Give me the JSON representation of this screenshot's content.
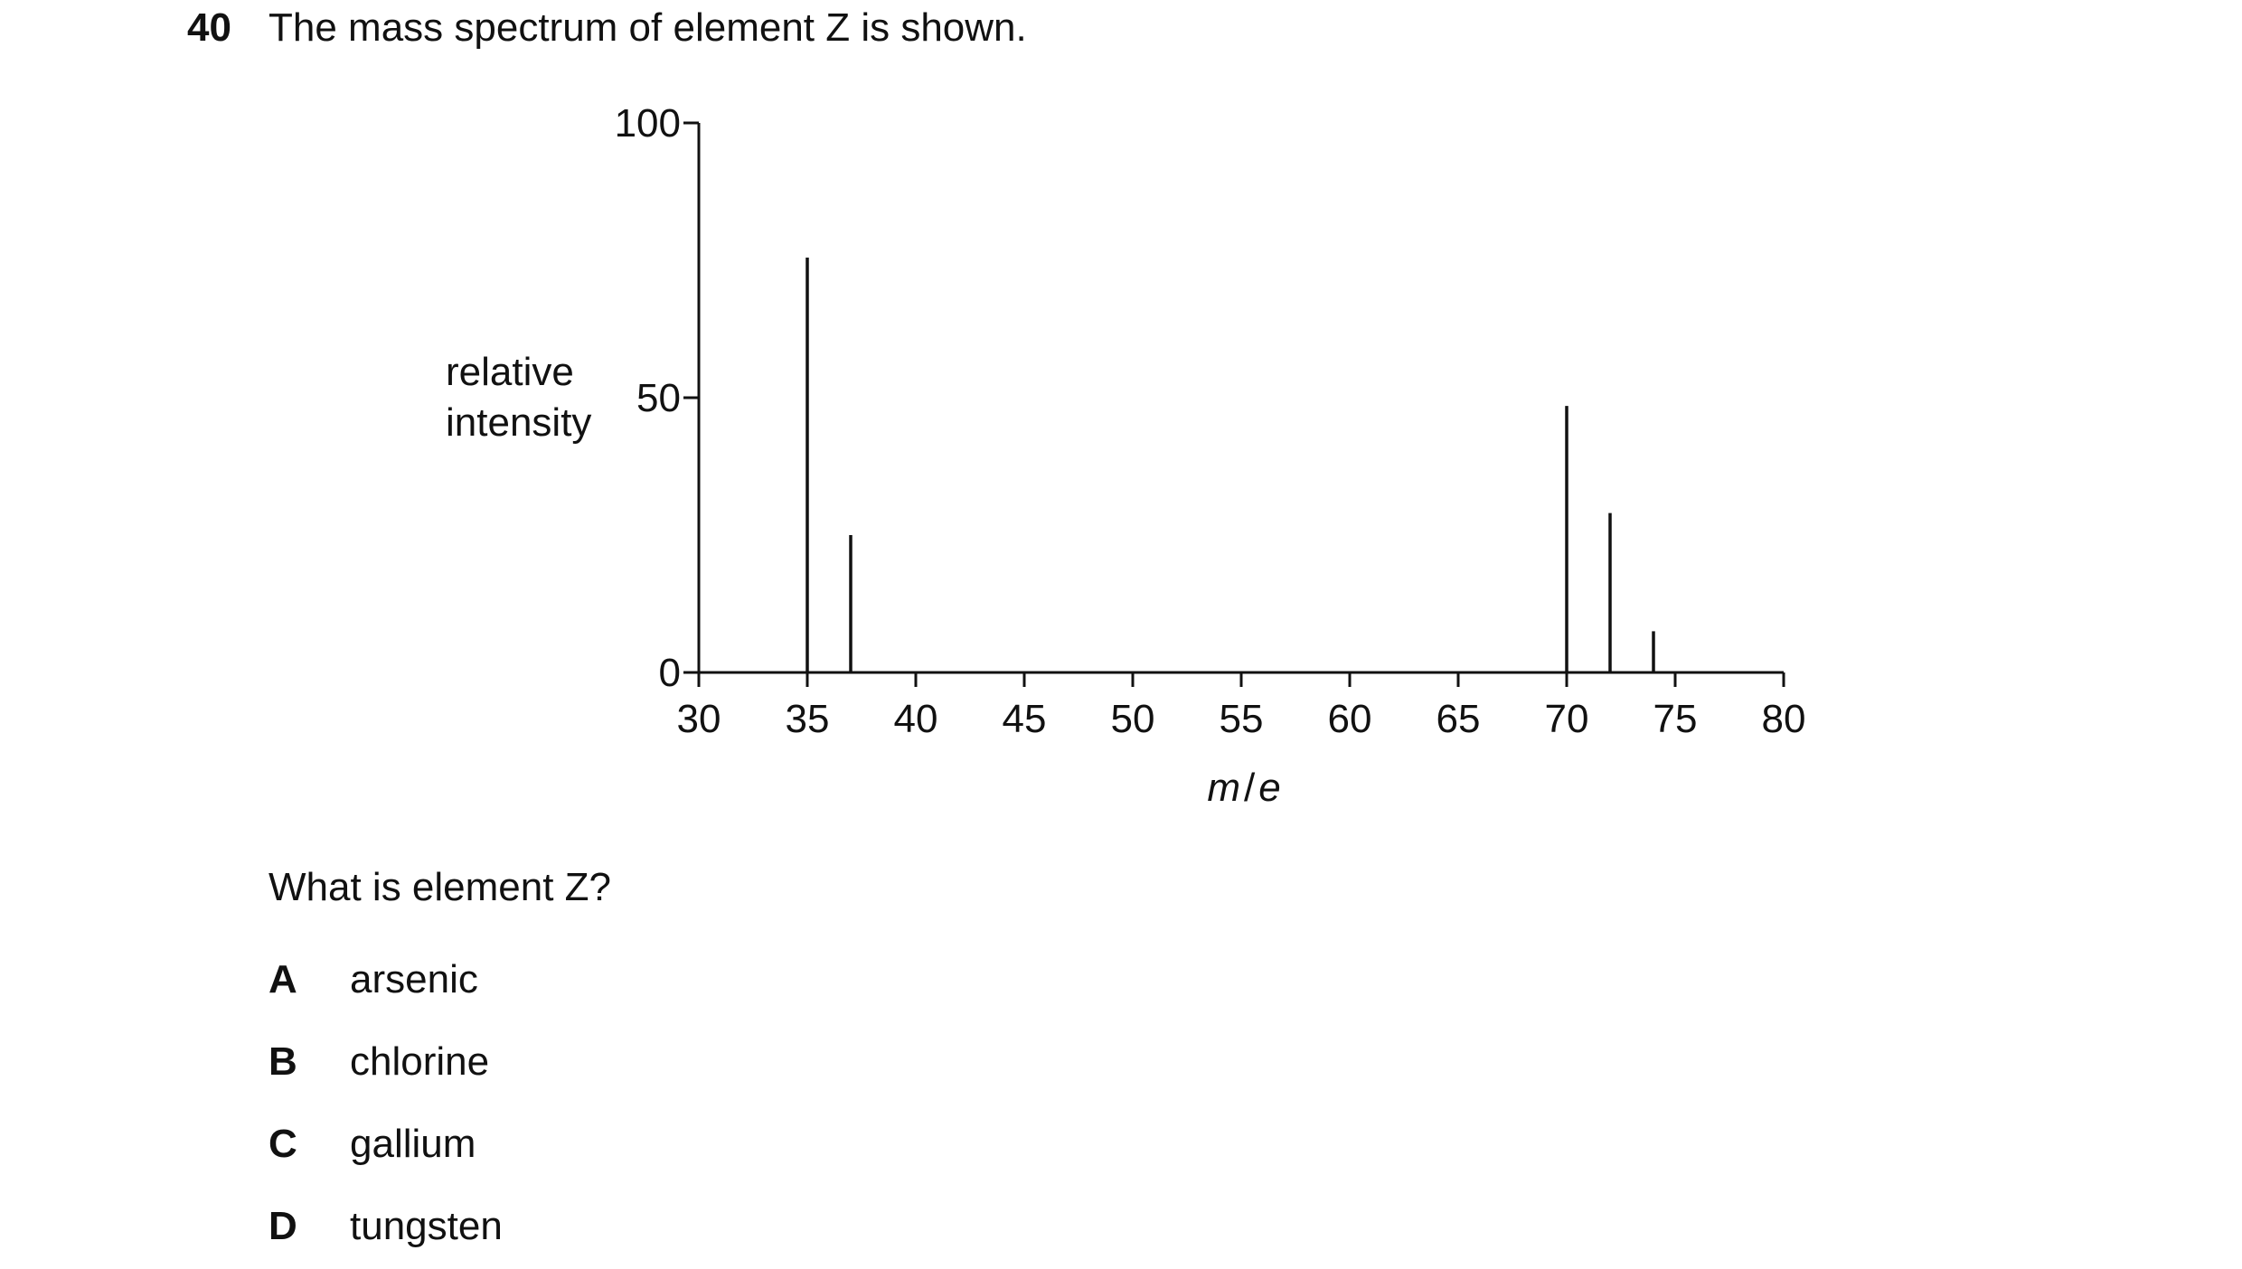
{
  "question": {
    "number": "40",
    "text": "The mass spectrum of element Z is shown.",
    "prompt": "What is element Z?",
    "options": [
      {
        "letter": "A",
        "text": "arsenic"
      },
      {
        "letter": "B",
        "text": "chlorine"
      },
      {
        "letter": "C",
        "text": "gallium"
      },
      {
        "letter": "D",
        "text": "tungsten"
      }
    ]
  },
  "chart_data": {
    "type": "bar",
    "title": "",
    "ylabel_lines": [
      "relative",
      "intensity"
    ],
    "xlabel": {
      "first": "m",
      "separator": "/",
      "second": "e"
    },
    "xlim": [
      30,
      80
    ],
    "ylim": [
      0,
      100
    ],
    "xticks": [
      30,
      35,
      40,
      45,
      50,
      55,
      60,
      65,
      70,
      75,
      80
    ],
    "yticks": [
      0,
      50,
      100
    ],
    "grid": false,
    "peaks": [
      {
        "x": 35,
        "y": 75.5
      },
      {
        "x": 37,
        "y": 25
      },
      {
        "x": 70,
        "y": 48.5
      },
      {
        "x": 72,
        "y": 29
      },
      {
        "x": 74,
        "y": 7.5
      }
    ]
  }
}
